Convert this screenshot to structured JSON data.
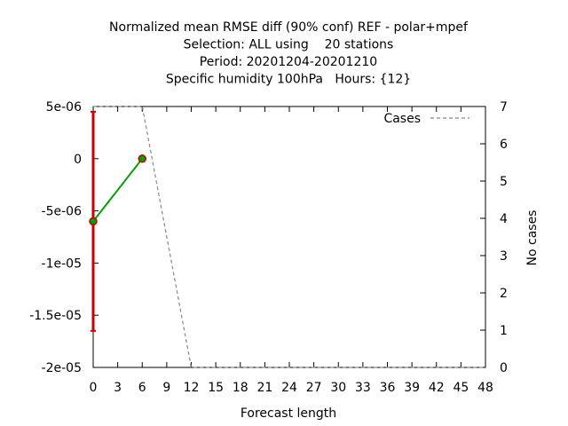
{
  "chart_data": {
    "type": "line",
    "title_lines": [
      "Normalized mean RMSE diff (90% conf) REF - polar+mpef",
      "Selection: ALL using    20 stations",
      "Period: 20201204-20201210",
      "Specific humidity 100hPa   Hours: {12}"
    ],
    "xlabel": "Forecast length",
    "ylabel_right": "No cases",
    "xlim": [
      0,
      48
    ],
    "ylim": [
      -2e-05,
      5e-06
    ],
    "y2lim": [
      0,
      7
    ],
    "x_ticks": [
      "0",
      "3",
      "6",
      "9",
      "12",
      "15",
      "18",
      "21",
      "24",
      "27",
      "30",
      "33",
      "36",
      "39",
      "42",
      "45",
      "48"
    ],
    "y_ticks": [
      "5e-06",
      "0",
      "-5e-06",
      "-1e-05",
      "-1.5e-05",
      "-2e-05"
    ],
    "y2_ticks": [
      "7",
      "6",
      "5",
      "4",
      "3",
      "2",
      "1",
      "0"
    ],
    "legend": {
      "label": "Cases",
      "placement": "top-right"
    },
    "series": [
      {
        "role": "mean_diff",
        "color": "#00a000",
        "x": [
          0,
          6
        ],
        "y": [
          -6e-06,
          0
        ]
      },
      {
        "role": "cases",
        "name": "Cases",
        "color": "#888888",
        "x": [
          0,
          3,
          6,
          12,
          15,
          18,
          21,
          24,
          27,
          30,
          33,
          36,
          39,
          42,
          45,
          48
        ],
        "y": [
          7,
          7,
          7,
          0,
          0,
          0,
          0,
          0,
          0,
          0,
          0,
          0,
          0,
          0,
          0,
          0
        ]
      }
    ],
    "confidence_interval": {
      "color": "#cc0000",
      "x": 0,
      "low": -1.65e-05,
      "high": 4.5e-06
    }
  }
}
